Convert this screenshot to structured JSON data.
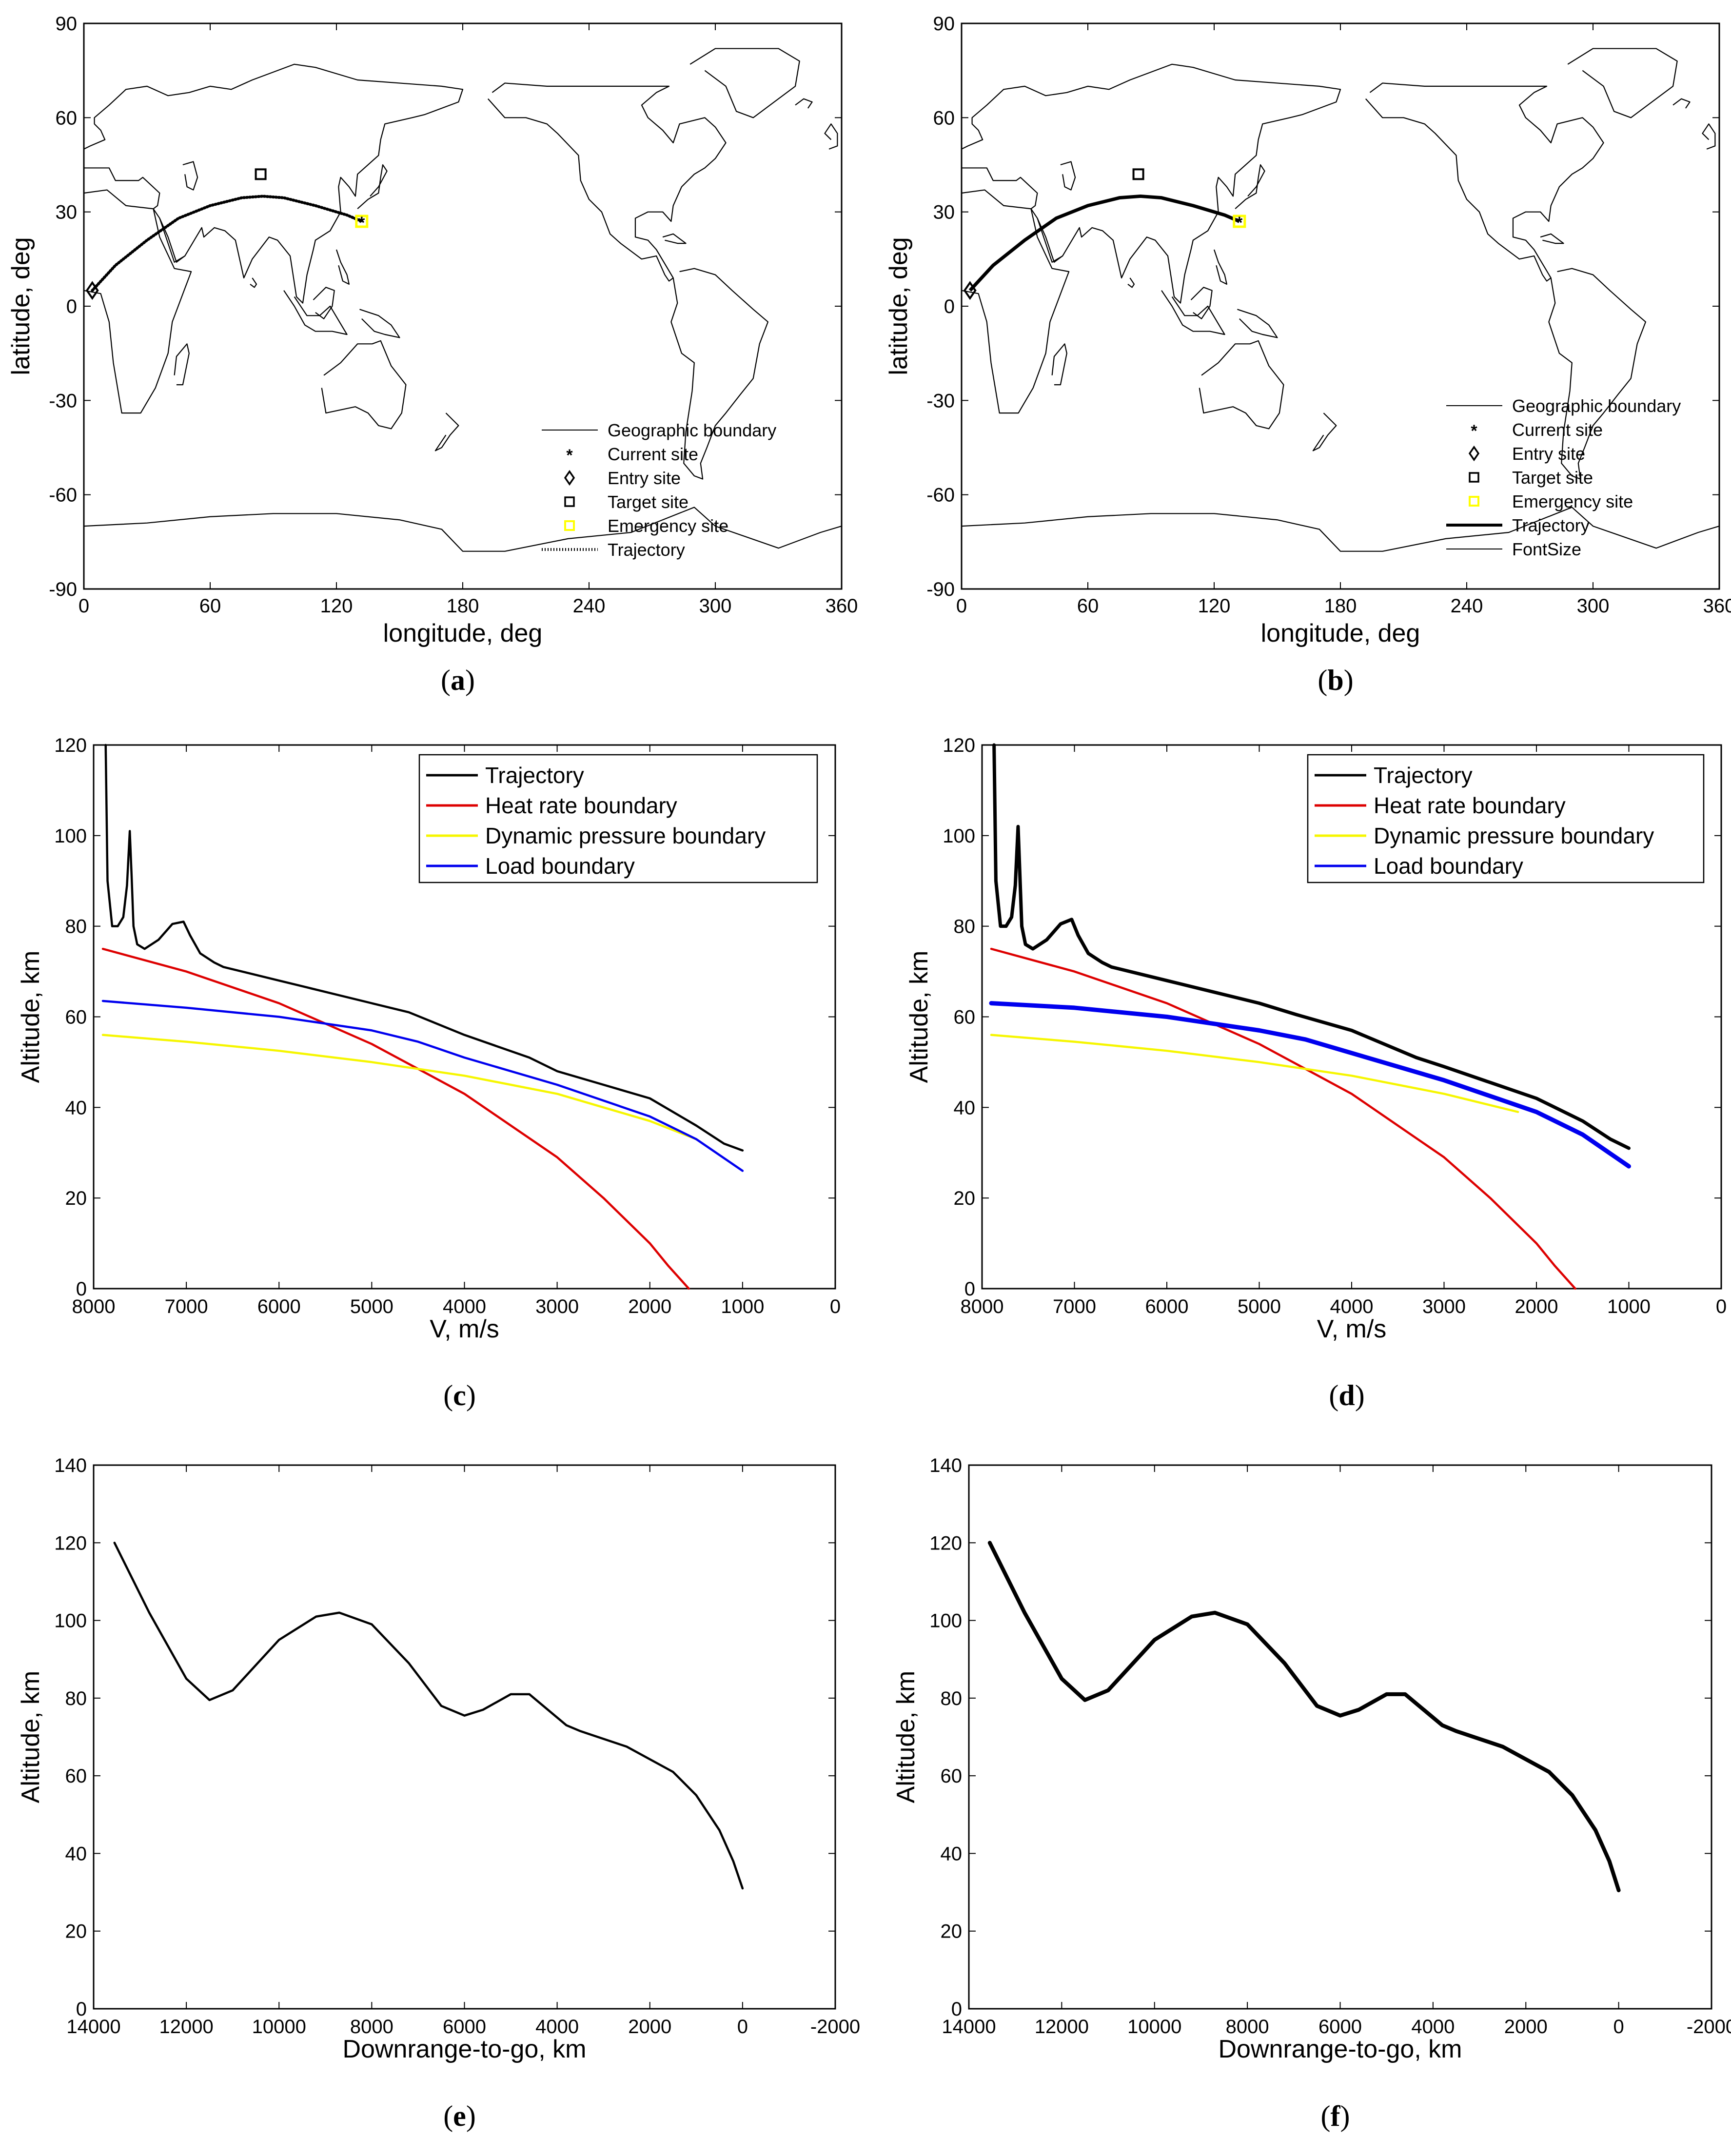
{
  "chart_data": [
    {
      "id": "a",
      "type": "line",
      "caption_letter": "a",
      "xlabel": "longitude, deg",
      "ylabel": "latitude, deg",
      "xlim": [
        0,
        360
      ],
      "ylim": [
        -90,
        90
      ],
      "xticks": [
        "0",
        "60",
        "120",
        "180",
        "240",
        "300",
        "360"
      ],
      "yticks": [
        "-90",
        "-60",
        "-30",
        "0",
        "30",
        "60",
        "90"
      ],
      "legend": [
        {
          "label": "Geographic boundary",
          "marker": "line"
        },
        {
          "label": "Current site",
          "marker": "asterisk"
        },
        {
          "label": "Entry site",
          "marker": "diamond"
        },
        {
          "label": "Target site",
          "marker": "square"
        },
        {
          "label": "Emergency site",
          "marker": "square-yellow"
        },
        {
          "label": "Trajectory",
          "marker": "dotted"
        }
      ],
      "points": {
        "entry": [
          4,
          5
        ],
        "target": [
          84,
          42
        ],
        "emergency": [
          132,
          27
        ],
        "current": [
          132,
          27
        ]
      },
      "trajectory": {
        "x": [
          4,
          15,
          30,
          45,
          60,
          75,
          85,
          95,
          110,
          125,
          132
        ],
        "y": [
          5,
          13,
          21,
          28,
          32,
          34.5,
          35,
          34.5,
          32,
          29,
          27
        ]
      }
    },
    {
      "id": "b",
      "type": "line",
      "caption_letter": "b",
      "xlabel": "longitude, deg",
      "ylabel": "latitude, deg",
      "xlim": [
        0,
        360
      ],
      "ylim": [
        -90,
        90
      ],
      "xticks": [
        "0",
        "60",
        "120",
        "180",
        "240",
        "300",
        "360"
      ],
      "yticks": [
        "-90",
        "-60",
        "-30",
        "0",
        "30",
        "60",
        "90"
      ],
      "legend": [
        {
          "label": "Geographic boundary",
          "marker": "line"
        },
        {
          "label": "Current site",
          "marker": "asterisk"
        },
        {
          "label": "Entry site",
          "marker": "diamond"
        },
        {
          "label": "Target site",
          "marker": "square"
        },
        {
          "label": "Emergency site",
          "marker": "square-yellow"
        },
        {
          "label": "Trajectory",
          "marker": "thick"
        },
        {
          "label": "FontSize",
          "marker": "line"
        }
      ],
      "points": {
        "entry": [
          4,
          5
        ],
        "target": [
          84,
          42
        ],
        "emergency": [
          132,
          27
        ],
        "current": [
          132,
          27
        ]
      },
      "trajectory": {
        "x": [
          4,
          15,
          30,
          45,
          60,
          75,
          85,
          95,
          110,
          125,
          132
        ],
        "y": [
          5,
          13,
          21,
          28,
          32,
          34.5,
          35,
          34.5,
          32,
          29,
          27
        ]
      }
    },
    {
      "id": "c",
      "type": "line",
      "caption_letter": "c",
      "xlabel": "V, m/s",
      "ylabel": "Altitude, km",
      "xlim": [
        8000,
        0
      ],
      "ylim": [
        0,
        120
      ],
      "xticks": [
        "8000",
        "7000",
        "6000",
        "5000",
        "4000",
        "3000",
        "2000",
        "1000",
        "0"
      ],
      "yticks": [
        "0",
        "20",
        "40",
        "60",
        "80",
        "100",
        "120"
      ],
      "series": [
        {
          "name": "Trajectory",
          "color": "#000000",
          "x": [
            7870,
            7850,
            7800,
            7740,
            7680,
            7640,
            7610,
            7590,
            7570,
            7530,
            7450,
            7300,
            7150,
            7030,
            6960,
            6850,
            6700,
            6600,
            6000,
            5000,
            4600,
            4000,
            3300,
            3000,
            2500,
            2000,
            1500,
            1200,
            1000
          ],
          "y": [
            120,
            90,
            80,
            80,
            82,
            89,
            101,
            91,
            80,
            76,
            75,
            77,
            80.5,
            81,
            78,
            74,
            72,
            71,
            68,
            63,
            61,
            56,
            51,
            48,
            45,
            42,
            36,
            32,
            30.5
          ]
        },
        {
          "name": "Heat rate boundary",
          "color": "#dd0000",
          "x": [
            7900,
            7000,
            6000,
            5000,
            4000,
            3000,
            2500,
            2000,
            1800,
            1580
          ],
          "y": [
            75,
            70,
            63,
            54,
            43,
            29,
            20,
            10,
            5,
            0
          ]
        },
        {
          "name": "Dynamic pressure boundary",
          "color": "#f6f600",
          "x": [
            7900,
            7000,
            6000,
            5000,
            4000,
            3000,
            2000,
            1500
          ],
          "y": [
            56,
            54.5,
            52.5,
            50,
            47,
            43,
            37,
            33
          ]
        },
        {
          "name": "Load boundary",
          "color": "#0000ee",
          "x": [
            7900,
            7000,
            6000,
            5000,
            4500,
            4000,
            3000,
            2000,
            1500,
            1000
          ],
          "y": [
            63.5,
            62,
            60,
            57,
            54.5,
            51,
            45,
            38,
            33,
            26
          ]
        }
      ],
      "legend_position": "top-right"
    },
    {
      "id": "d",
      "type": "line",
      "caption_letter": "d",
      "xlabel": "V, m/s",
      "ylabel": "Altitude, km",
      "xlim": [
        8000,
        0
      ],
      "ylim": [
        0,
        120
      ],
      "xticks": [
        "8000",
        "7000",
        "6000",
        "5000",
        "4000",
        "3000",
        "2000",
        "1000",
        "0"
      ],
      "yticks": [
        "0",
        "20",
        "40",
        "60",
        "80",
        "100",
        "120"
      ],
      "series": [
        {
          "name": "Trajectory",
          "color": "#000000",
          "x": [
            7870,
            7850,
            7800,
            7740,
            7680,
            7640,
            7610,
            7590,
            7570,
            7530,
            7450,
            7300,
            7150,
            7030,
            6960,
            6850,
            6700,
            6600,
            6000,
            5000,
            4600,
            4000,
            3300,
            3000,
            2500,
            2000,
            1500,
            1200,
            1000
          ],
          "y": [
            120,
            90,
            80,
            80,
            82,
            89,
            102,
            91,
            80,
            76,
            75,
            77,
            80.5,
            81.5,
            78,
            74,
            72,
            71,
            68,
            63,
            60.5,
            57,
            51,
            49,
            45.5,
            42,
            37,
            33,
            31
          ]
        },
        {
          "name": "Heat rate boundary",
          "color": "#dd0000",
          "x": [
            7900,
            7000,
            6000,
            5000,
            4000,
            3000,
            2500,
            2000,
            1800,
            1580
          ],
          "y": [
            75,
            70,
            63,
            54,
            43,
            29,
            20,
            10,
            5,
            0
          ]
        },
        {
          "name": "Dynamic pressure boundary",
          "color": "#f6f600",
          "x": [
            7900,
            7000,
            6000,
            5000,
            4000,
            3000,
            2200
          ],
          "y": [
            56,
            54.5,
            52.5,
            50,
            47,
            43,
            39
          ]
        },
        {
          "name": "Load boundary",
          "color": "#0000ee",
          "x": [
            7900,
            7000,
            6000,
            5000,
            4500,
            4000,
            3000,
            2000,
            1500,
            1000
          ],
          "y": [
            63,
            62,
            60,
            57,
            55,
            52,
            46,
            39,
            34,
            27
          ]
        }
      ],
      "legend_position": "top-right"
    },
    {
      "id": "e",
      "type": "line",
      "caption_letter": "e",
      "xlabel": "Downrange-to-go, km",
      "ylabel": "Altitude, km",
      "xlim": [
        14000,
        -2000
      ],
      "ylim": [
        0,
        140
      ],
      "xticks": [
        "14000",
        "12000",
        "10000",
        "8000",
        "6000",
        "4000",
        "2000",
        "0",
        "-2000"
      ],
      "yticks": [
        "0",
        "20",
        "40",
        "60",
        "80",
        "100",
        "120",
        "140"
      ],
      "series": [
        {
          "name": "Altitude",
          "color": "#000000",
          "x": [
            13550,
            12800,
            12000,
            11500,
            11000,
            10000,
            9200,
            8700,
            8000,
            7200,
            6500,
            6000,
            5600,
            5000,
            4600,
            4200,
            3800,
            3500,
            2500,
            1500,
            1000,
            500,
            200,
            0
          ],
          "y": [
            120,
            102,
            85,
            79.5,
            82,
            95,
            101,
            102,
            99,
            89,
            78,
            75.5,
            77,
            81,
            81,
            77,
            73,
            71.5,
            67.5,
            61,
            55,
            46,
            38,
            31
          ]
        }
      ]
    },
    {
      "id": "f",
      "type": "line",
      "caption_letter": "f",
      "xlabel": "Downrange-to-go, km",
      "ylabel": "Altitude, km",
      "xlim": [
        14000,
        -2000
      ],
      "ylim": [
        0,
        140
      ],
      "xticks": [
        "14000",
        "12000",
        "10000",
        "8000",
        "6000",
        "4000",
        "2000",
        "0",
        "-2000"
      ],
      "yticks": [
        "0",
        "20",
        "40",
        "60",
        "80",
        "100",
        "120",
        "140"
      ],
      "series": [
        {
          "name": "Altitude",
          "color": "#000000",
          "x": [
            13550,
            12800,
            12000,
            11500,
            11000,
            10000,
            9200,
            8700,
            8000,
            7200,
            6500,
            6000,
            5600,
            5000,
            4600,
            4200,
            3800,
            3500,
            2500,
            1500,
            1000,
            500,
            200,
            0
          ],
          "y": [
            120,
            102,
            85,
            79.5,
            82,
            95,
            101,
            102,
            99,
            89,
            78,
            75.5,
            77,
            81,
            81,
            77,
            73,
            71.5,
            67.5,
            61,
            55,
            46,
            38,
            30.5
          ]
        }
      ]
    }
  ]
}
